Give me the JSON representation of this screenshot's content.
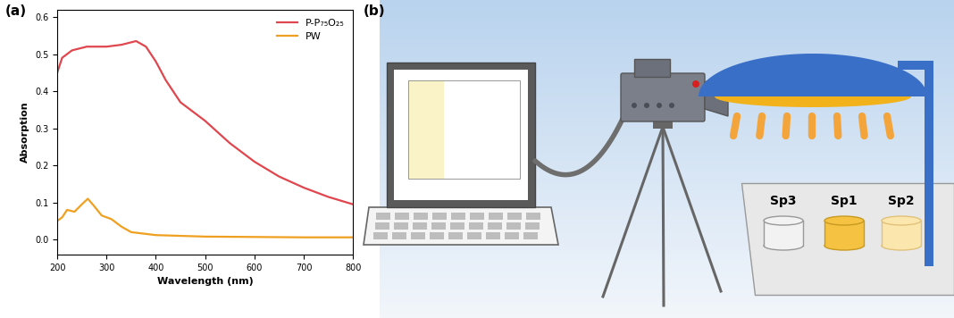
{
  "chart_data": {
    "type": "line",
    "title": "(a)",
    "x_label": "Wavelength (nm)",
    "y_label": "Absorption",
    "series": [
      {
        "name": "P-P₇₅O₂₅",
        "color": "#e0464e",
        "x": [
          200,
          210,
          230,
          260,
          300,
          330,
          360,
          380,
          400,
          420,
          450,
          500,
          550,
          600,
          650,
          700,
          750,
          800
        ],
        "values": [
          0.45,
          0.49,
          0.51,
          0.52,
          0.52,
          0.525,
          0.535,
          0.52,
          0.48,
          0.43,
          0.37,
          0.32,
          0.26,
          0.21,
          0.17,
          0.14,
          0.115,
          0.095
        ]
      },
      {
        "name": "PW",
        "color": "#f0a020",
        "x": [
          200,
          210,
          220,
          235,
          250,
          262,
          275,
          290,
          310,
          330,
          350,
          400,
          500,
          600,
          700,
          800
        ],
        "values": [
          0.05,
          0.06,
          0.08,
          0.075,
          0.095,
          0.11,
          0.09,
          0.065,
          0.055,
          0.035,
          0.02,
          0.012,
          0.008,
          0.007,
          0.006,
          0.006
        ]
      }
    ],
    "xlim": [
      200,
      800
    ],
    "xticks": [
      200,
      300,
      400,
      500,
      600,
      700,
      800
    ],
    "ylim": [
      -0.04,
      0.62
    ],
    "yticks": [
      {
        "value": 0,
        "label": "0.0"
      },
      0.1,
      0.2,
      0.3,
      0.4,
      0.5,
      0.6
    ],
    "legend": "upper right"
  },
  "diagram": {
    "label": "(b)",
    "samples": [
      "Sp3",
      "Sp1",
      "Sp2"
    ]
  }
}
